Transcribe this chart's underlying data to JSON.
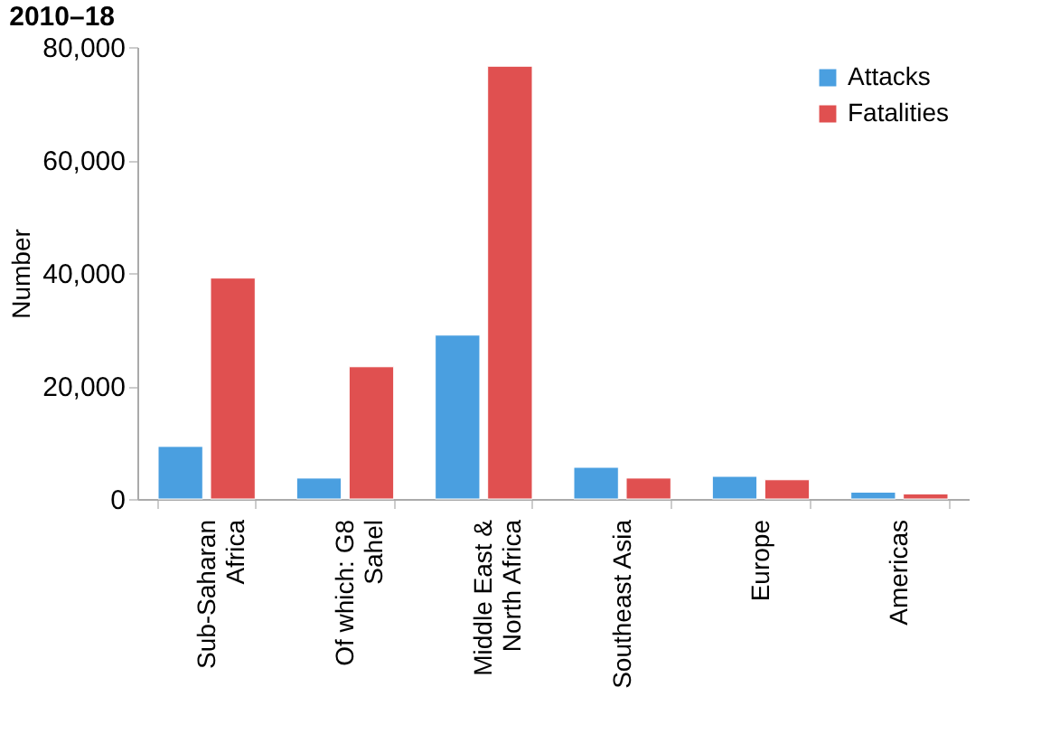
{
  "chart_data": {
    "type": "bar",
    "title": "2010–18",
    "ylabel": "Number",
    "categories": [
      "Sub-Saharan Africa",
      "Of which: G8 Sahel",
      "Middle East & North Africa",
      "Southeast Asia",
      "Europe",
      "Americas"
    ],
    "series": [
      {
        "name": "Attacks",
        "color": "#4a9fe0",
        "values": [
          9300,
          3700,
          29000,
          5600,
          4000,
          1200
        ]
      },
      {
        "name": "Fatalities",
        "color": "#e05050",
        "values": [
          39100,
          23400,
          76600,
          3700,
          3400,
          900
        ]
      }
    ],
    "ylim": [
      0,
      80000
    ],
    "yticks": [
      0,
      {
        "value": 20000,
        "label": "20,000"
      },
      {
        "value": 40000,
        "label": "40,000"
      },
      {
        "value": 60000,
        "label": "60,000"
      },
      {
        "value": 80000,
        "label": "80,000"
      }
    ],
    "grid": false,
    "legend": "top right"
  }
}
